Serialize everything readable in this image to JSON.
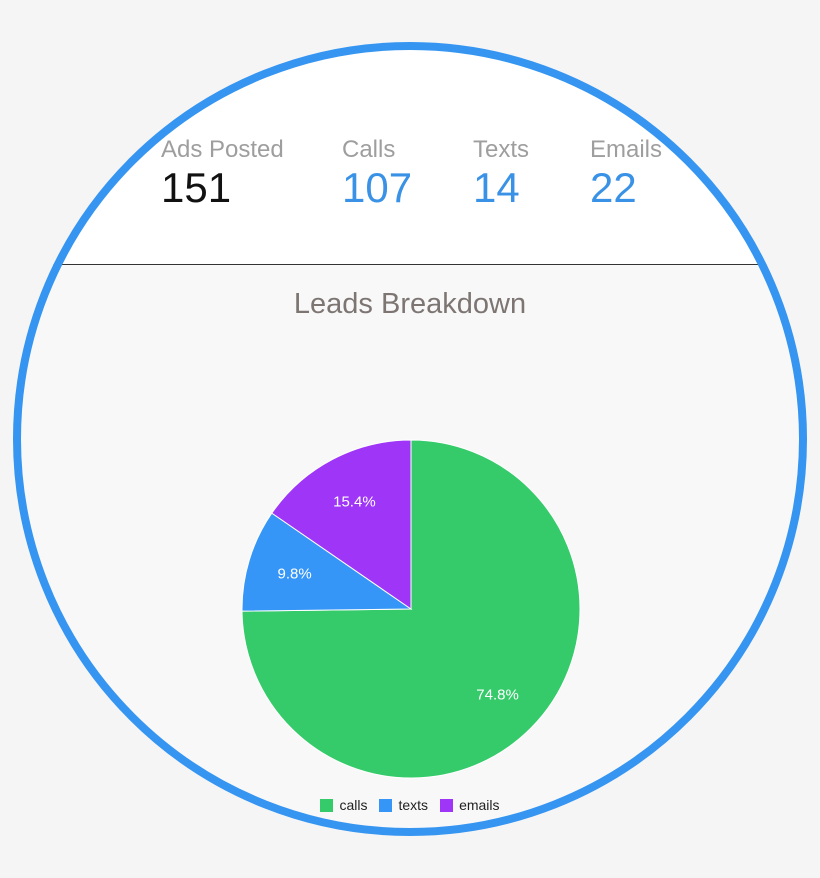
{
  "stats": [
    {
      "label": "Ads Posted",
      "value": "151"
    },
    {
      "label": "Calls",
      "value": "107"
    },
    {
      "label": "Texts",
      "value": "14"
    },
    {
      "label": "Emails",
      "value": "22"
    }
  ],
  "chart_data": {
    "type": "pie",
    "title": "Leads Breakdown",
    "categories": [
      "calls",
      "texts",
      "emails"
    ],
    "values": [
      74.8,
      9.8,
      15.4
    ],
    "colors": [
      "#35cb6a",
      "#3596f7",
      "#9e35f7"
    ],
    "value_labels": [
      "74.8%",
      "9.8%",
      "15.4%"
    ],
    "legend_position": "bottom"
  }
}
